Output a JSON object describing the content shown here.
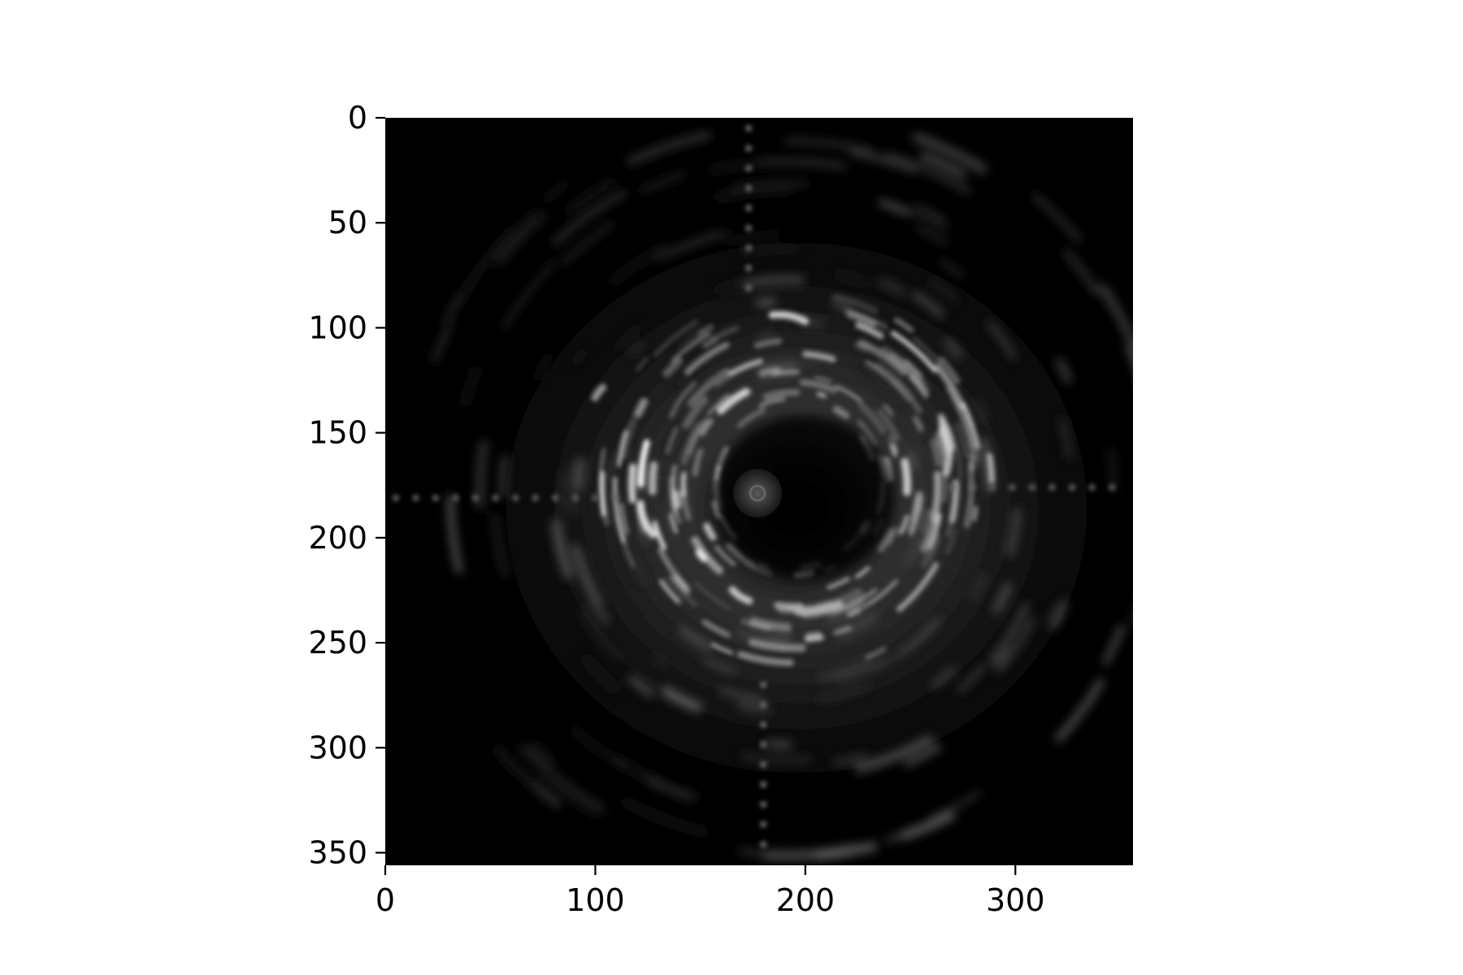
{
  "figure": {
    "kind": "grayscale image (intravascular ultrasound cross-section)",
    "colormap": "gray",
    "background_color": "#ffffff",
    "image_background": "#000000"
  },
  "axes": {
    "x": {
      "range": [
        0,
        356
      ],
      "ticks": [
        0,
        100,
        200,
        300
      ],
      "tick_labels": [
        "0",
        "100",
        "200",
        "300"
      ]
    },
    "y": {
      "range": [
        0,
        356
      ],
      "inverted": true,
      "ticks": [
        0,
        50,
        100,
        150,
        200,
        250,
        300,
        350
      ],
      "tick_labels": [
        "0",
        "50",
        "100",
        "150",
        "200",
        "250",
        "300",
        "350"
      ]
    }
  },
  "image_features": {
    "catheter_center": [
      180,
      178
    ],
    "lumen_ring_center": [
      195,
      175
    ],
    "artifact_line_vertical_top_x": 173,
    "artifact_line_vertical_bottom_x": 180,
    "artifact_line_horizontal_left_y": 181,
    "artifact_line_horizontal_right_y": 176
  }
}
